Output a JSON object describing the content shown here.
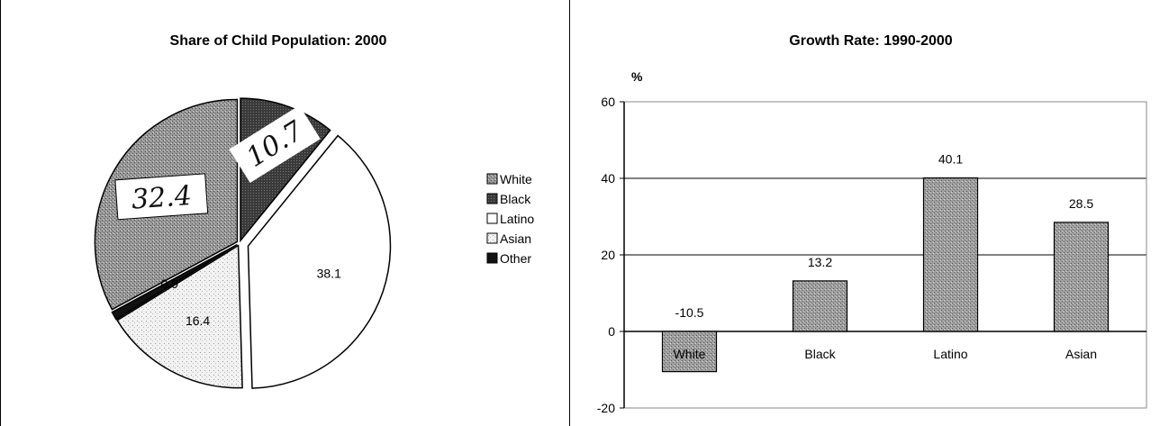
{
  "chart_data": [
    {
      "type": "pie",
      "title": "Share of Child Population:  2000",
      "slices": [
        {
          "name": "White",
          "value": 32.4,
          "label": "",
          "color": "#a0a0a0",
          "pattern": "dots-dense"
        },
        {
          "name": "Black",
          "value": 10.7,
          "label": "",
          "color": "#3a3a3a",
          "pattern": "dark"
        },
        {
          "name": "Latino",
          "value": 38.1,
          "label": "38.1",
          "color": "#ffffff",
          "pattern": "none"
        },
        {
          "name": "Asian",
          "value": 16.4,
          "label": "16.4",
          "color": "#eaeaea",
          "pattern": "dots-light"
        },
        {
          "name": "Other",
          "value": 0.9,
          "label": "0.9",
          "color": "#111111",
          "pattern": "solid"
        }
      ],
      "legend": [
        "White",
        "Black",
        "Latino",
        "Asian",
        "Other"
      ],
      "legend_position": "right",
      "annotations": [
        {
          "text": "32.4",
          "target": "White"
        },
        {
          "text": "10.7",
          "target": "Black"
        }
      ]
    },
    {
      "type": "bar",
      "title": "Growth Rate:  1990-2000",
      "ylabel": "%",
      "categories": [
        "White",
        "Black",
        "Latino",
        "Asian"
      ],
      "values": [
        -10.5,
        13.2,
        40.1,
        28.5
      ],
      "data_labels": [
        "-10.5",
        "13.2",
        "40.1",
        "28.5"
      ],
      "ylim": [
        -20,
        60
      ],
      "yticks": [
        -20,
        0,
        20,
        40,
        60
      ],
      "ytick_labels": [
        "-20",
        "0",
        "20",
        "40",
        "60"
      ],
      "grid": true,
      "bar_color": "#a0a0a0"
    }
  ]
}
